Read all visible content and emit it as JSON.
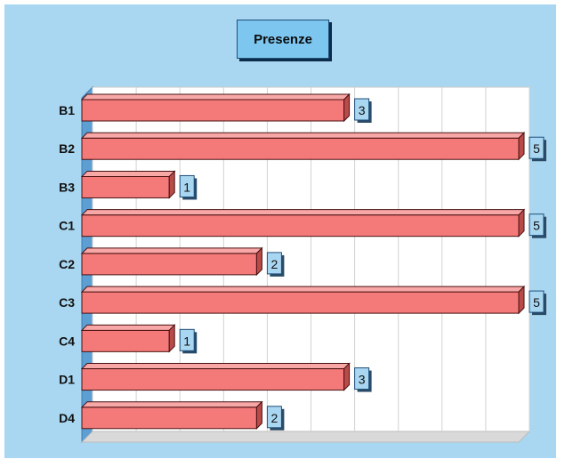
{
  "chart_data": {
    "type": "bar",
    "orientation": "horizontal",
    "title": "Presenze",
    "categories": [
      "B1",
      "B2",
      "B3",
      "C1",
      "C2",
      "C3",
      "C4",
      "D1",
      "D4"
    ],
    "values": [
      3,
      5,
      1,
      5,
      2,
      5,
      1,
      3,
      2
    ],
    "xlim": [
      0,
      5
    ],
    "grid": true,
    "legend": "none",
    "style": "3d",
    "colors": {
      "background": "#a9d6f0",
      "plot": "#ffffff",
      "bar": "#f47a7a",
      "bar_top": "#f8a7a7",
      "bar_side": "#b94a4a",
      "wall": "#5d9ed3",
      "label_box": "#a9d6f0"
    }
  }
}
